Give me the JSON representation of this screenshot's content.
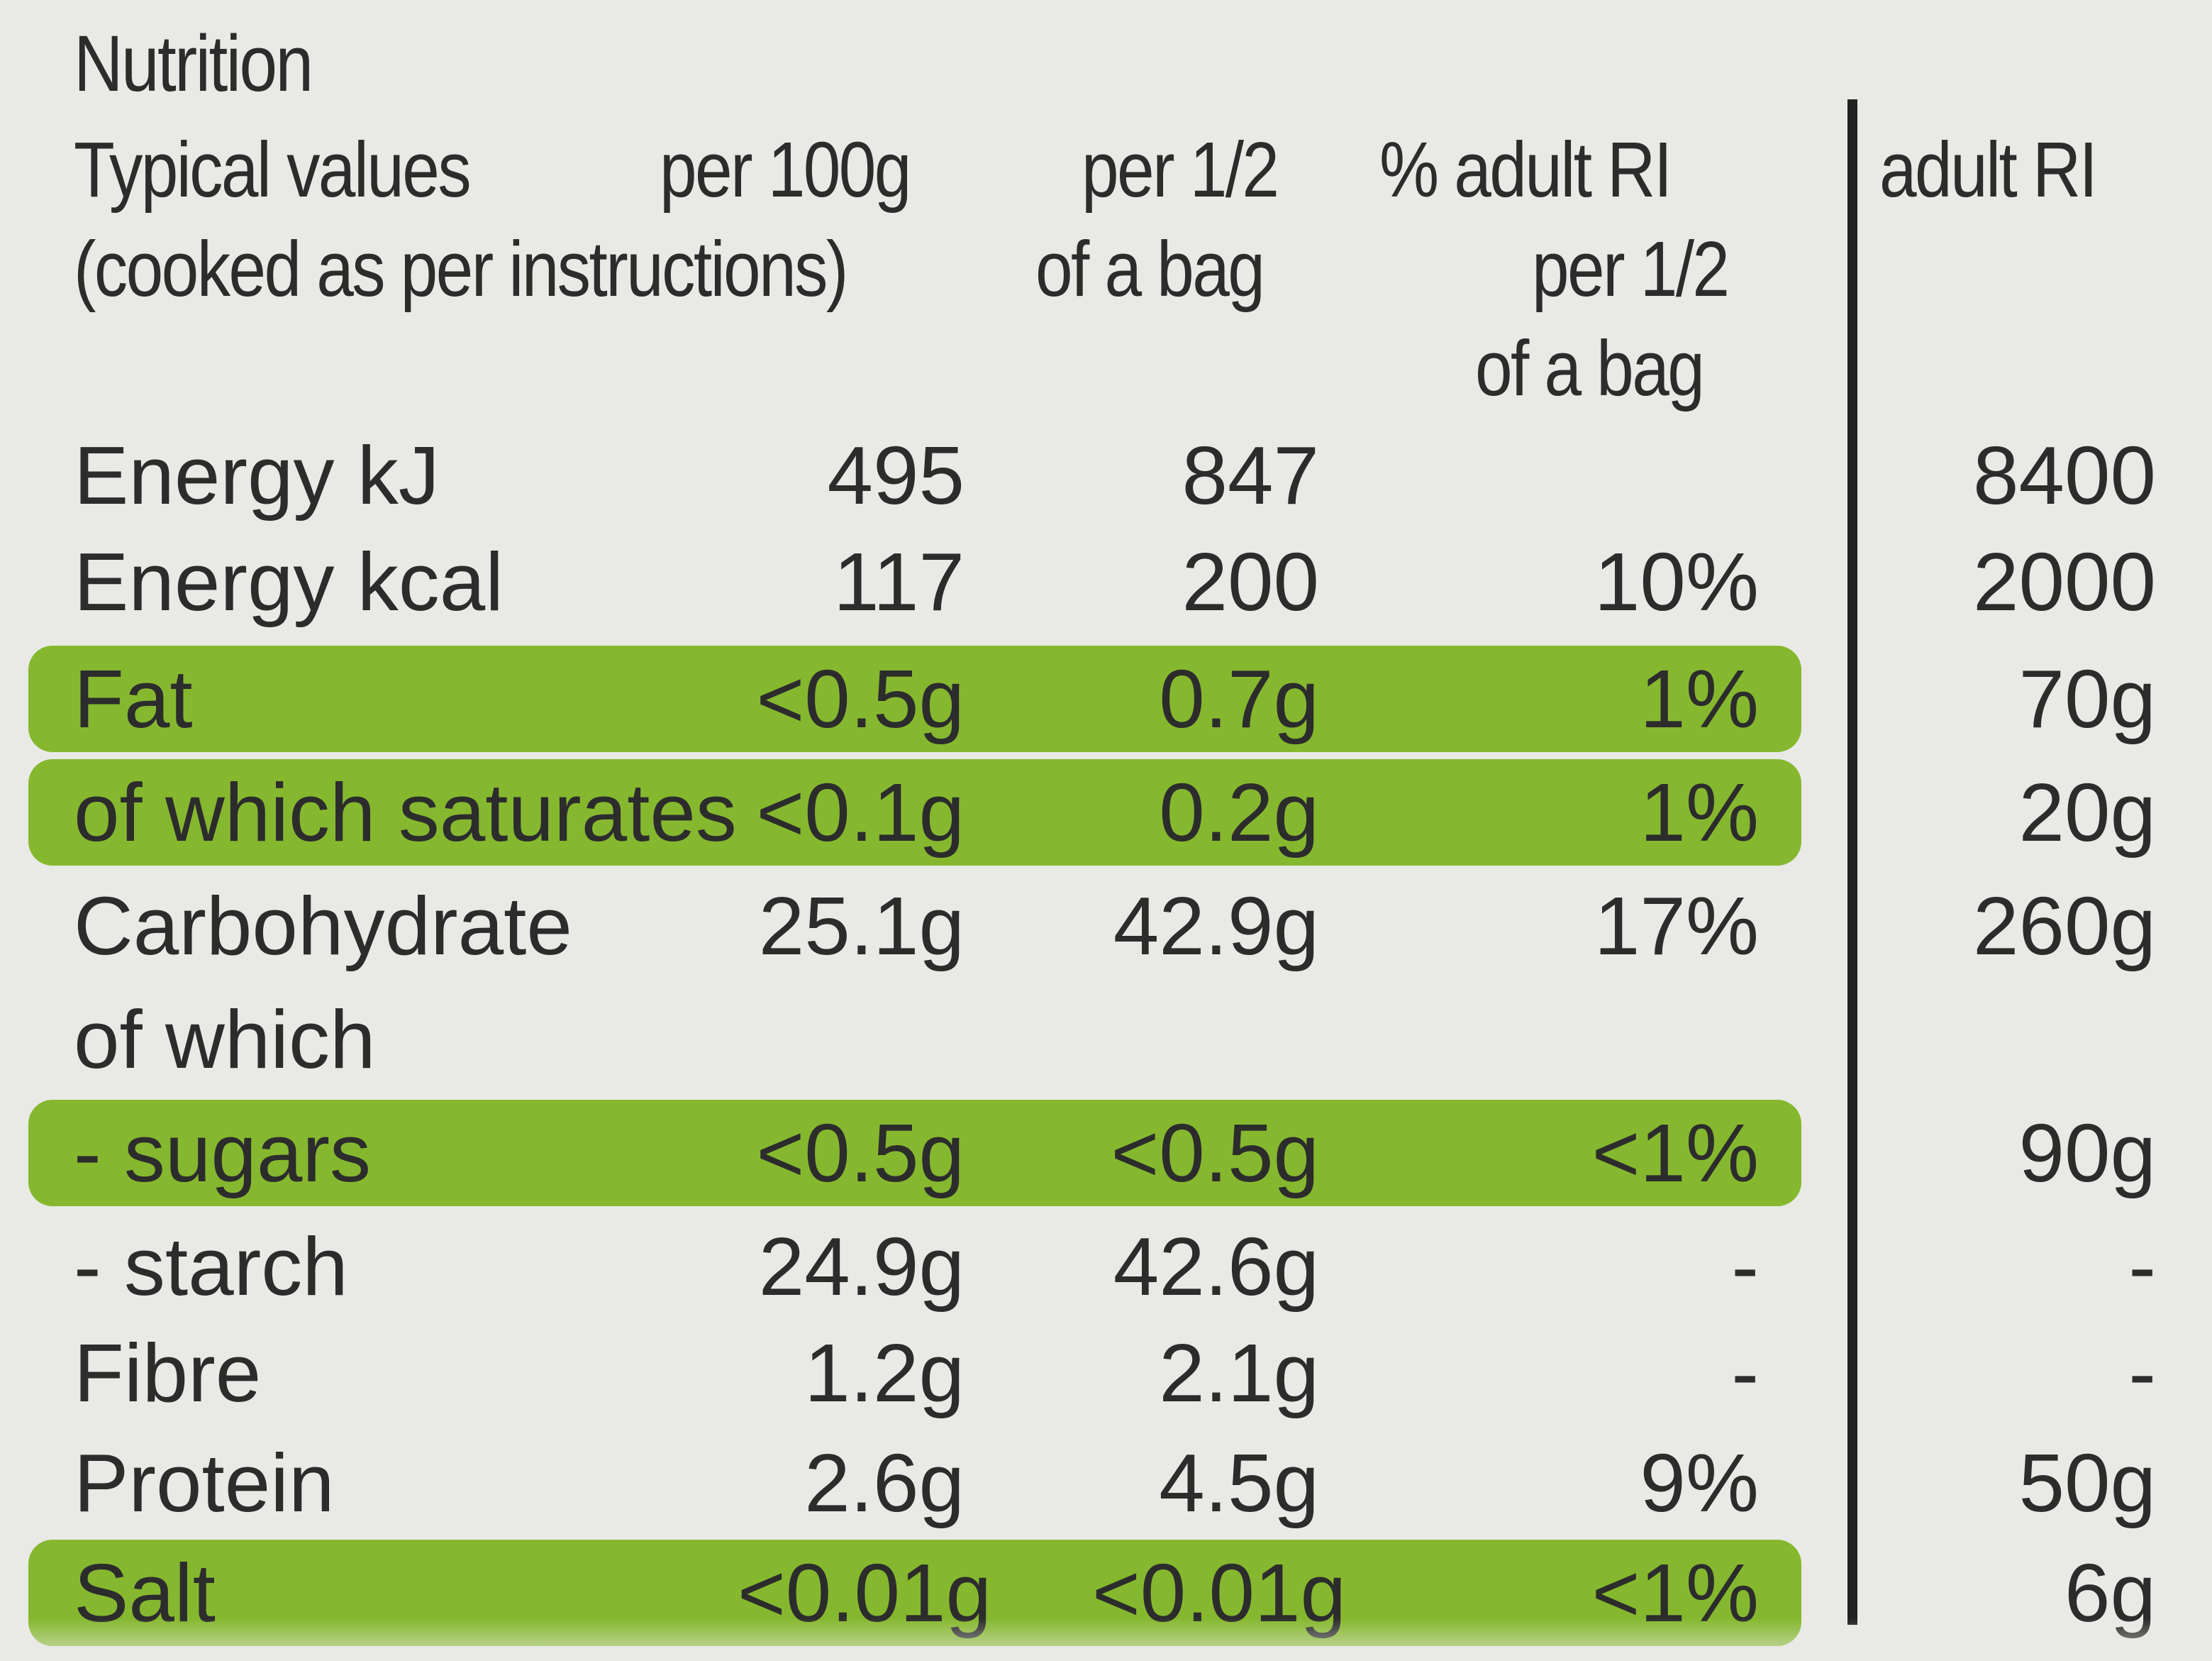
{
  "title": "Nutrition",
  "header": {
    "typical_values": "Typical values",
    "cooked_note": "(cooked as per instructions)",
    "per_100g": "per 100g",
    "per_half_bag_line1": "per 1/2",
    "per_half_bag_line2": "of a bag",
    "ri_pct_line1": "% adult RI",
    "ri_pct_line2": "per 1/2",
    "ri_pct_line3": "of a bag",
    "adult_ri": "adult RI"
  },
  "colors": {
    "background": "#e9eae6",
    "highlight": "#86b82f",
    "text": "#2c2c2c",
    "rule": "#222222"
  },
  "rows": [
    {
      "name": "Energy kJ",
      "per_100g": "495",
      "per_half_bag": "847",
      "ri_pct": "",
      "adult_ri": "8400",
      "highlight": false
    },
    {
      "name": "Energy kcal",
      "per_100g": "117",
      "per_half_bag": "200",
      "ri_pct": "10%",
      "adult_ri": "2000",
      "highlight": false
    },
    {
      "name": "Fat",
      "per_100g": "<0.5g",
      "per_half_bag": "0.7g",
      "ri_pct": "1%",
      "adult_ri": "70g",
      "highlight": true
    },
    {
      "name": "of which saturates",
      "per_100g": "<0.1g",
      "per_half_bag": "0.2g",
      "ri_pct": "1%",
      "adult_ri": "20g",
      "highlight": true
    },
    {
      "name": "Carbohydrate",
      "per_100g": "25.1g",
      "per_half_bag": "42.9g",
      "ri_pct": "17%",
      "adult_ri": "260g",
      "highlight": false
    },
    {
      "name": "of which",
      "per_100g": "",
      "per_half_bag": "",
      "ri_pct": "",
      "adult_ri": "",
      "highlight": false
    },
    {
      "name": "- sugars",
      "per_100g": "<0.5g",
      "per_half_bag": "<0.5g",
      "ri_pct": "<1%",
      "adult_ri": "90g",
      "highlight": true
    },
    {
      "name": "- starch",
      "per_100g": "24.9g",
      "per_half_bag": "42.6g",
      "ri_pct": "-",
      "adult_ri": "-",
      "highlight": false
    },
    {
      "name": "Fibre",
      "per_100g": "1.2g",
      "per_half_bag": "2.1g",
      "ri_pct": "-",
      "adult_ri": "-",
      "highlight": false
    },
    {
      "name": "Protein",
      "per_100g": "2.6g",
      "per_half_bag": "4.5g",
      "ri_pct": "9%",
      "adult_ri": "50g",
      "highlight": false
    },
    {
      "name": "Salt",
      "per_100g": "<0.01g",
      "per_half_bag": "<0.01g",
      "ri_pct": "<1%",
      "adult_ri": "6g",
      "highlight": true
    }
  ]
}
